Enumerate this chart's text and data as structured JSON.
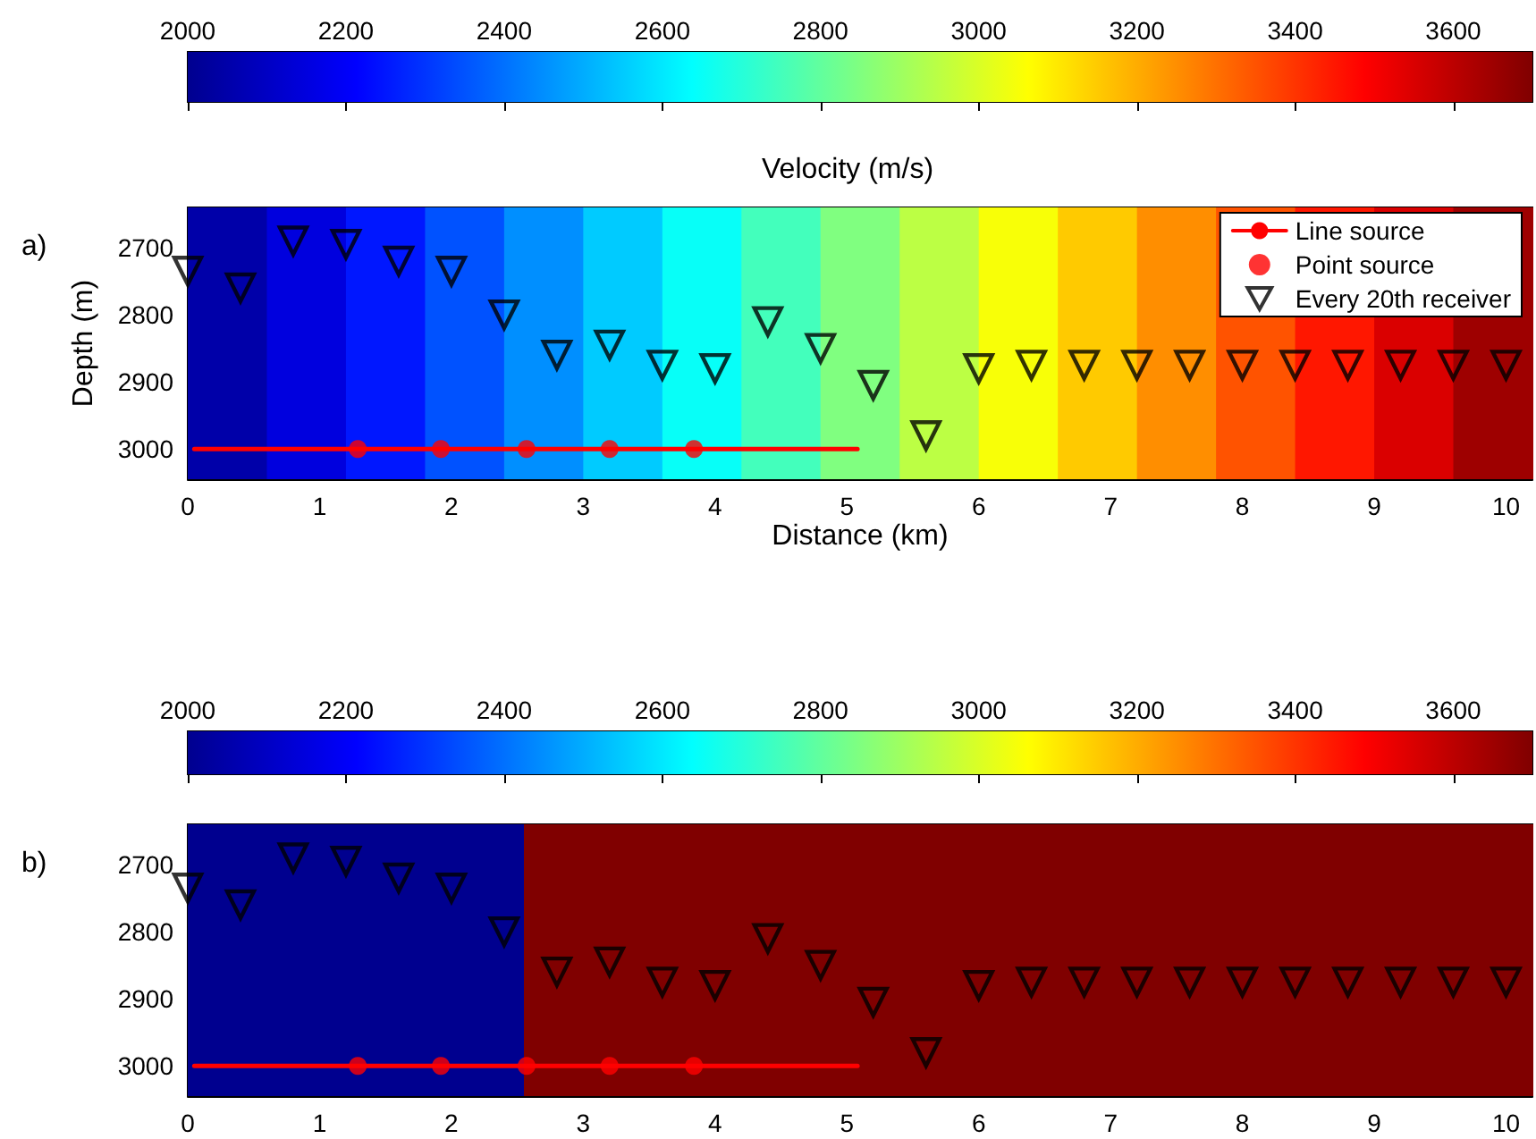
{
  "chart_data": [
    {
      "type": "heatmap",
      "xlabel": "Distance (km)",
      "ylabel": "Depth (m)",
      "clabel": "Velocity (m/s)",
      "annotations": [
        "a)"
      ],
      "cells": [
        [
          2050,
          2150,
          2250,
          2350,
          2450,
          2550,
          2650,
          2750,
          2850,
          2950,
          3050,
          3150,
          3250,
          3350,
          3450,
          3550,
          3650
        ]
      ],
      "clim": [
        2000,
        3700
      ],
      "cticks": [
        2000,
        2200,
        2400,
        2600,
        2800,
        3000,
        3200,
        3400,
        3600
      ],
      "xlim": [
        0,
        10.2
      ],
      "xticks": [
        0,
        1,
        2,
        3,
        4,
        5,
        6,
        7,
        8,
        9,
        10
      ],
      "ylim": [
        3045,
        2640
      ],
      "yticks": [
        2700,
        2800,
        2900,
        3000
      ],
      "legend": "top right",
      "series": [
        {
          "name": "Line source",
          "type": "line",
          "color": "#ff0000",
          "x": [
            0.05,
            5.08
          ],
          "values": [
            3000,
            3000
          ]
        },
        {
          "name": "Point source",
          "type": "scatter",
          "marker": "circle",
          "color": "#ff0000",
          "x": [
            1.29,
            1.92,
            2.57,
            3.2,
            3.84
          ],
          "values": [
            3000,
            3000,
            3000,
            3000,
            3000
          ]
        },
        {
          "name": "Every 20th receiver",
          "type": "scatter",
          "marker": "triangle",
          "color": "#000000",
          "x": [
            0,
            0.4,
            0.8,
            1.2,
            1.6,
            2,
            2.4,
            2.8,
            3.2,
            3.6,
            4,
            4.4,
            4.8,
            5.2,
            5.6,
            6,
            6.4,
            6.8,
            7.2,
            7.6,
            8,
            8.4,
            8.8,
            9.2,
            9.6,
            10
          ],
          "values": [
            2735,
            2760,
            2690,
            2695,
            2720,
            2735,
            2800,
            2860,
            2845,
            2875,
            2880,
            2810,
            2850,
            2905,
            2980,
            2880,
            2875,
            2875,
            2875,
            2875,
            2875,
            2875,
            2875,
            2875,
            2875,
            2875
          ]
        }
      ]
    },
    {
      "type": "heatmap",
      "annotations": [
        "b)"
      ],
      "cells": [
        [
          2000,
          3700,
          3700,
          3700
        ]
      ],
      "clim": [
        2000,
        3700
      ],
      "cticks": [
        2000,
        2200,
        2400,
        2600,
        2800,
        3000,
        3200,
        3400,
        3600
      ],
      "xlim": [
        0,
        10.2
      ],
      "xticks": [
        0,
        1,
        2,
        3,
        4,
        5,
        6,
        7,
        8,
        9,
        10
      ],
      "ylim": [
        3045,
        2640
      ],
      "yticks": [
        2700,
        2800,
        2900,
        3000
      ],
      "series": [
        {
          "type": "line",
          "color": "#ff0000",
          "x": [
            0.05,
            5.08
          ],
          "values": [
            3000,
            3000
          ]
        },
        {
          "type": "scatter",
          "marker": "circle",
          "color": "#ff0000",
          "x": [
            1.29,
            1.92,
            2.57,
            3.2,
            3.84
          ],
          "values": [
            3000,
            3000,
            3000,
            3000,
            3000
          ]
        },
        {
          "type": "scatter",
          "marker": "triangle",
          "color": "#000000",
          "x": [
            0,
            0.4,
            0.8,
            1.2,
            1.6,
            2,
            2.4,
            2.8,
            3.2,
            3.6,
            4,
            4.4,
            4.8,
            5.2,
            5.6,
            6,
            6.4,
            6.8,
            7.2,
            7.6,
            8,
            8.4,
            8.8,
            9.2,
            9.6,
            10
          ],
          "values": [
            2735,
            2760,
            2690,
            2695,
            2720,
            2735,
            2800,
            2860,
            2845,
            2875,
            2880,
            2810,
            2850,
            2905,
            2980,
            2880,
            2875,
            2875,
            2875,
            2875,
            2875,
            2875,
            2875,
            2875,
            2875,
            2875
          ]
        }
      ]
    }
  ]
}
